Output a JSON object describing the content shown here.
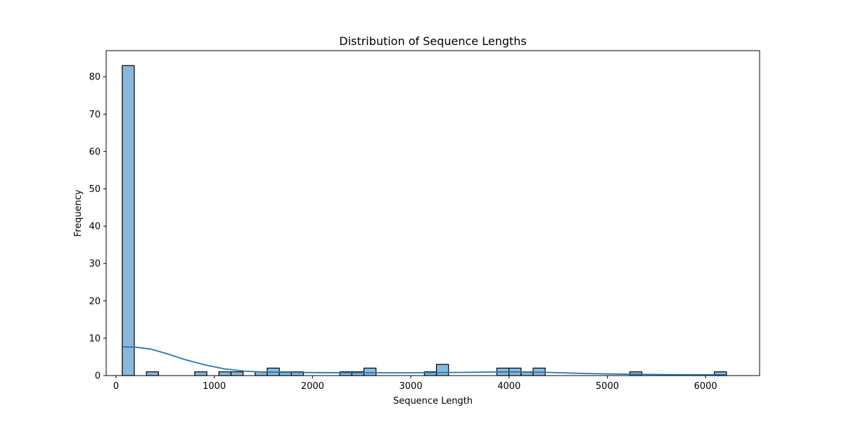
{
  "chart_data": {
    "type": "bar",
    "title": "Distribution of Sequence Lengths",
    "xlabel": "Sequence Length",
    "ylabel": "Frequency",
    "xlim": [
      -100,
      6550
    ],
    "ylim": [
      0,
      87
    ],
    "x_ticks": [
      0,
      1000,
      2000,
      3000,
      4000,
      5000,
      6000
    ],
    "y_ticks": [
      0,
      10,
      20,
      30,
      40,
      50,
      60,
      70,
      80
    ],
    "grid": false,
    "bin_width": 123,
    "bins": [
      {
        "x0": 63,
        "count": 83
      },
      {
        "x0": 309,
        "count": 1
      },
      {
        "x0": 801,
        "count": 1
      },
      {
        "x0": 1047,
        "count": 1
      },
      {
        "x0": 1170,
        "count": 1
      },
      {
        "x0": 1416,
        "count": 1
      },
      {
        "x0": 1539,
        "count": 2
      },
      {
        "x0": 1662,
        "count": 1
      },
      {
        "x0": 1785,
        "count": 1
      },
      {
        "x0": 2277,
        "count": 1
      },
      {
        "x0": 2400,
        "count": 1
      },
      {
        "x0": 2523,
        "count": 2
      },
      {
        "x0": 3138,
        "count": 1
      },
      {
        "x0": 3261,
        "count": 3
      },
      {
        "x0": 3876,
        "count": 2
      },
      {
        "x0": 3999,
        "count": 2
      },
      {
        "x0": 4122,
        "count": 1
      },
      {
        "x0": 4245,
        "count": 2
      },
      {
        "x0": 5229,
        "count": 1
      },
      {
        "x0": 6090,
        "count": 1
      }
    ],
    "kde": {
      "x": [
        63,
        200,
        350,
        500,
        700,
        900,
        1100,
        1300,
        1500,
        1800,
        2100,
        2500,
        3000,
        3500,
        4000,
        4400,
        4800,
        5200,
        5600,
        6000,
        6213
      ],
      "y": [
        7.7,
        7.6,
        7.1,
        6.0,
        4.3,
        2.9,
        1.8,
        1.2,
        0.95,
        0.85,
        0.8,
        0.75,
        0.75,
        0.85,
        1.0,
        0.85,
        0.55,
        0.35,
        0.25,
        0.2,
        0.2
      ]
    },
    "colors": {
      "bar_fill": "#8bb8da",
      "bar_edge": "#000000",
      "kde_line": "#1f77b4"
    }
  }
}
